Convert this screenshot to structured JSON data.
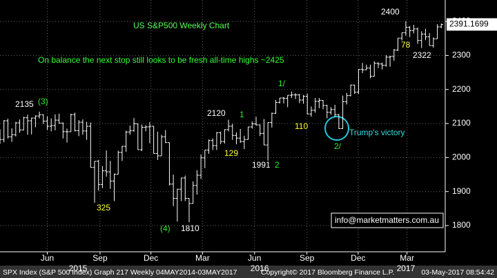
{
  "chart_data": {
    "type": "ohlc",
    "title": "US S&P500 Weekly Chart",
    "subtitle": "On balance the next stop still looks to be fresh all-time highs ~2425",
    "ohlc": [
      [
        2080,
        2083,
        2040,
        2053
      ],
      [
        2053,
        2110,
        2045,
        2108
      ],
      [
        2108,
        2114,
        2056,
        2061
      ],
      [
        2061,
        2086,
        2046,
        2067
      ],
      [
        2067,
        2105,
        2062,
        2102
      ],
      [
        2102,
        2112,
        2073,
        2081
      ],
      [
        2081,
        2120,
        2080,
        2117
      ],
      [
        2117,
        2126,
        2067,
        2108
      ],
      [
        2108,
        2117,
        2068,
        2116
      ],
      [
        2116,
        2124,
        2089,
        2122
      ],
      [
        2122,
        2135,
        2115,
        2126
      ],
      [
        2126,
        2127,
        2099,
        2107
      ],
      [
        2107,
        2121,
        2081,
        2092
      ],
      [
        2092,
        2115,
        2077,
        2094
      ],
      [
        2094,
        2127,
        2080,
        2110
      ],
      [
        2110,
        2129,
        2100,
        2101
      ],
      [
        2101,
        2103,
        2056,
        2076
      ],
      [
        2076,
        2085,
        2044,
        2076
      ],
      [
        2076,
        2129,
        2076,
        2126
      ],
      [
        2126,
        2132,
        2077,
        2079
      ],
      [
        2079,
        2110,
        2063,
        2104
      ],
      [
        2104,
        2112,
        2067,
        2078
      ],
      [
        2078,
        2105,
        2052,
        2092
      ],
      [
        2092,
        2103,
        1971,
        1971
      ],
      [
        1971,
        1989,
        1867,
        1989
      ],
      [
        1989,
        1993,
        1903,
        1921
      ],
      [
        1921,
        1975,
        1910,
        1961
      ],
      [
        1961,
        2021,
        1944,
        1958
      ],
      [
        1958,
        1990,
        1908,
        1931
      ],
      [
        1931,
        1953,
        1872,
        1951
      ],
      [
        1951,
        2020,
        1951,
        2015
      ],
      [
        2015,
        2034,
        1990,
        2033
      ],
      [
        2033,
        2079,
        2017,
        2075
      ],
      [
        2075,
        2094,
        2067,
        2079
      ],
      [
        2079,
        2116,
        2076,
        2099
      ],
      [
        2099,
        2100,
        2023,
        2023
      ],
      [
        2023,
        2097,
        2019,
        2089
      ],
      [
        2089,
        2095,
        2077,
        2090
      ],
      [
        2090,
        2104,
        2042,
        2092
      ],
      [
        2092,
        2093,
        2012,
        2012
      ],
      [
        2012,
        2076,
        1993,
        2005
      ],
      [
        2005,
        2067,
        2005,
        2061
      ],
      [
        2061,
        2081,
        2043,
        2044
      ],
      [
        2044,
        2044,
        1918,
        1922
      ],
      [
        1922,
        1950,
        1857,
        1880
      ],
      [
        1880,
        1908,
        1812,
        1907
      ],
      [
        1907,
        1940,
        1872,
        1940
      ],
      [
        1940,
        1947,
        1872,
        1880
      ],
      [
        1880,
        1881,
        1810,
        1865
      ],
      [
        1865,
        1930,
        1865,
        1918
      ],
      [
        1918,
        1963,
        1891,
        1948
      ],
      [
        1948,
        2009,
        1937,
        1999
      ],
      [
        1999,
        2022,
        1969,
        2022
      ],
      [
        2022,
        2053,
        2011,
        2050
      ],
      [
        2050,
        2056,
        2022,
        2035
      ],
      [
        2035,
        2075,
        2022,
        2073
      ],
      [
        2073,
        2076,
        2039,
        2047
      ],
      [
        2047,
        2083,
        2041,
        2082
      ],
      [
        2082,
        2111,
        2077,
        2092
      ],
      [
        2092,
        2099,
        2052,
        2065
      ],
      [
        2065,
        2074,
        2039,
        2057
      ],
      [
        2057,
        2084,
        2043,
        2047
      ],
      [
        2047,
        2064,
        2025,
        2053
      ],
      [
        2053,
        2091,
        2053,
        2090
      ],
      [
        2090,
        2106,
        2085,
        2099
      ],
      [
        2099,
        2120,
        2094,
        2096
      ],
      [
        2096,
        2097,
        2063,
        2071
      ],
      [
        2071,
        2113,
        2037,
        2037
      ],
      [
        2037,
        2103,
        1991,
        2103
      ],
      [
        2103,
        2132,
        2088,
        2130
      ],
      [
        2130,
        2169,
        2128,
        2162
      ],
      [
        2162,
        2175,
        2159,
        2175
      ],
      [
        2175,
        2178,
        2159,
        2174
      ],
      [
        2174,
        2183,
        2148,
        2183
      ],
      [
        2183,
        2194,
        2175,
        2184
      ],
      [
        2184,
        2189,
        2172,
        2184
      ],
      [
        2184,
        2187,
        2160,
        2169
      ],
      [
        2169,
        2184,
        2158,
        2180
      ],
      [
        2180,
        2188,
        2127,
        2128
      ],
      [
        2128,
        2150,
        2120,
        2139
      ],
      [
        2139,
        2175,
        2132,
        2165
      ],
      [
        2165,
        2175,
        2145,
        2168
      ],
      [
        2168,
        2169,
        2142,
        2153
      ],
      [
        2153,
        2155,
        2115,
        2133
      ],
      [
        2133,
        2148,
        2126,
        2141
      ],
      [
        2141,
        2155,
        2120,
        2126
      ],
      [
        2126,
        2128,
        2084,
        2085
      ],
      [
        2085,
        2182,
        2084,
        2164
      ],
      [
        2164,
        2190,
        2156,
        2182
      ],
      [
        2182,
        2214,
        2180,
        2213
      ],
      [
        2213,
        2214,
        2187,
        2192
      ],
      [
        2192,
        2260,
        2187,
        2259
      ],
      [
        2259,
        2278,
        2248,
        2258
      ],
      [
        2258,
        2273,
        2257,
        2263
      ],
      [
        2263,
        2273,
        2233,
        2239
      ],
      [
        2239,
        2283,
        2238,
        2277
      ],
      [
        2277,
        2280,
        2263,
        2275
      ],
      [
        2275,
        2279,
        2259,
        2271
      ],
      [
        2271,
        2301,
        2267,
        2295
      ],
      [
        2295,
        2299,
        2267,
        2297
      ],
      [
        2297,
        2319,
        2284,
        2316
      ],
      [
        2316,
        2351,
        2313,
        2351
      ],
      [
        2351,
        2367,
        2344,
        2367
      ],
      [
        2367,
        2401,
        2358,
        2383
      ],
      [
        2383,
        2386,
        2354,
        2373
      ],
      [
        2373,
        2390,
        2365,
        2378
      ],
      [
        2378,
        2382,
        2334,
        2344
      ],
      [
        2344,
        2371,
        2322,
        2363
      ],
      [
        2363,
        2378,
        2345,
        2355
      ],
      [
        2355,
        2366,
        2329,
        2329
      ],
      [
        2329,
        2353,
        2323,
        2349
      ],
      [
        2349,
        2392,
        2349,
        2384
      ],
      [
        2384,
        2394,
        2380,
        2391
      ]
    ],
    "xlim": [
      0,
      113
    ],
    "xticks": [
      {
        "value": 12,
        "label": "Jun"
      },
      {
        "value": 25.4,
        "label": "Sep"
      },
      {
        "value": 38.3,
        "label": "Dec"
      },
      {
        "value": 51.4,
        "label": "Mar"
      },
      {
        "value": 64.6,
        "label": "Jun"
      },
      {
        "value": 77.9,
        "label": "Sep"
      },
      {
        "value": 90.9,
        "label": "Dec"
      },
      {
        "value": 103.3,
        "label": "Mar"
      }
    ],
    "year_labels": [
      {
        "value": 19.8,
        "label": "2015"
      },
      {
        "value": 65.9,
        "label": "2016"
      },
      {
        "value": 103,
        "label": "2017"
      }
    ],
    "ylim": [
      1723,
      2463
    ],
    "yticks": [
      1800,
      1900,
      2000,
      2100,
      2200,
      2300,
      2400
    ],
    "last_price": 2391.1699,
    "grid": true,
    "annotations": [
      "2135",
      "(3)",
      "325",
      "(4)",
      "1810",
      "2120",
      "1",
      "129",
      "1991",
      "2",
      "1/",
      "110",
      "Trump's victory",
      "2/",
      "2400",
      "78",
      "2322"
    ],
    "contact": "info@marketmatters.com.au",
    "footer": [
      "SPX Index (S&P 500 Index) Graph 217   Weekly 04MAY2014-03MAY2017",
      "Copyright© 2017 Bloomberg Finance L.P.",
      "03-May-2017 08:54:42"
    ]
  }
}
